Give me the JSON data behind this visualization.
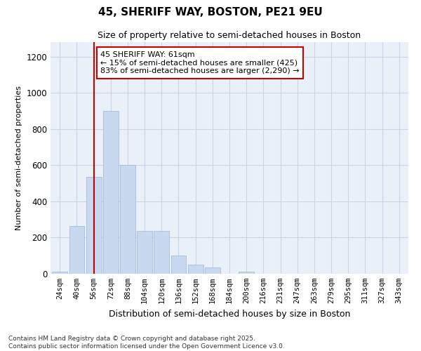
{
  "title": "45, SHERIFF WAY, BOSTON, PE21 9EU",
  "subtitle": "Size of property relative to semi-detached houses in Boston",
  "xlabel": "Distribution of semi-detached houses by size in Boston",
  "ylabel": "Number of semi-detached properties",
  "categories": [
    "24sqm",
    "40sqm",
    "56sqm",
    "72sqm",
    "88sqm",
    "104sqm",
    "120sqm",
    "136sqm",
    "152sqm",
    "168sqm",
    "184sqm",
    "200sqm",
    "216sqm",
    "231sqm",
    "247sqm",
    "263sqm",
    "279sqm",
    "295sqm",
    "311sqm",
    "327sqm",
    "343sqm"
  ],
  "values": [
    10,
    265,
    535,
    900,
    600,
    235,
    235,
    100,
    50,
    35,
    0,
    10,
    0,
    0,
    0,
    0,
    0,
    0,
    0,
    0,
    0
  ],
  "bar_color": "#c8d8ee",
  "bar_edge_color": "#9ab4d4",
  "red_line_x": 2,
  "annotation_title": "45 SHERIFF WAY: 61sqm",
  "annotation_line1": "← 15% of semi-detached houses are smaller (425)",
  "annotation_line2": "83% of semi-detached houses are larger (2,290) →",
  "annotation_box_facecolor": "#ffffff",
  "annotation_box_edgecolor": "#cc0000",
  "ylim": [
    0,
    1280
  ],
  "yticks": [
    0,
    200,
    400,
    600,
    800,
    1000,
    1200
  ],
  "grid_color": "#c8d4e8",
  "bg_color": "#eaf0f8",
  "footer_line1": "Contains HM Land Registry data © Crown copyright and database right 2025.",
  "footer_line2": "Contains public sector information licensed under the Open Government Licence v3.0."
}
